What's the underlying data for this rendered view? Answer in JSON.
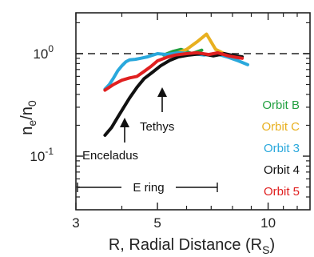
{
  "chart_data": {
    "type": "line",
    "x_scale": "log",
    "y_scale": "log",
    "xlim": [
      3,
      13
    ],
    "ylim": [
      0.03,
      2.5
    ],
    "xlabel": {
      "main": "R, Radial Distance (R",
      "sub": "S",
      "close": ")"
    },
    "ylabel": {
      "n": "n",
      "sub1": "e",
      "slash": "/n",
      "sub2": "0"
    },
    "x_ticks": [
      {
        "value": 3,
        "label": "3"
      },
      {
        "value": 5,
        "label": "5"
      },
      {
        "value": 10,
        "label": "10"
      }
    ],
    "y_ticks": [
      {
        "value": 0.1,
        "base": "10",
        "exp": "-1"
      },
      {
        "value": 1,
        "base": "10",
        "exp": "0"
      }
    ],
    "reference_line": {
      "y": 1,
      "style": "dashed"
    },
    "annotations": [
      {
        "id": "enceladus",
        "label": "Enceladus",
        "x": 3.95,
        "y": 0.19
      },
      {
        "id": "tethys",
        "label": "Tethys",
        "x": 4.88,
        "y": 0.5
      }
    ],
    "e_ring": {
      "label": "E ring",
      "x_start": 3.0,
      "x_end": 7.3
    },
    "series": [
      {
        "name": "Orbit B",
        "color": "#22a040",
        "points": [
          [
            5.2,
            0.97
          ],
          [
            5.5,
            1.05
          ],
          [
            5.8,
            1.1
          ],
          [
            6.2,
            1.0
          ],
          [
            6.6,
            1.08
          ]
        ]
      },
      {
        "name": "Orbit C",
        "color": "#e8b020",
        "points": [
          [
            5.6,
            1.0
          ],
          [
            6.0,
            1.1
          ],
          [
            6.4,
            1.3
          ],
          [
            6.8,
            1.55
          ],
          [
            7.0,
            1.3
          ],
          [
            7.2,
            1.1
          ],
          [
            7.6,
            1.0
          ]
        ]
      },
      {
        "name": "Orbit 3",
        "color": "#29a8dc",
        "points": [
          [
            3.6,
            0.45
          ],
          [
            3.7,
            0.5
          ],
          [
            3.8,
            0.58
          ],
          [
            3.9,
            0.68
          ],
          [
            4.0,
            0.76
          ],
          [
            4.1,
            0.83
          ],
          [
            4.2,
            0.87
          ],
          [
            4.35,
            0.88
          ],
          [
            4.5,
            0.9
          ],
          [
            4.7,
            0.93
          ],
          [
            5.0,
            1.0
          ],
          [
            5.3,
            0.98
          ],
          [
            5.7,
            1.02
          ],
          [
            6.2,
            1.0
          ],
          [
            6.7,
            0.97
          ],
          [
            7.2,
            1.0
          ],
          [
            7.8,
            0.92
          ],
          [
            8.3,
            0.85
          ],
          [
            8.8,
            0.78
          ]
        ]
      },
      {
        "name": "Orbit 4",
        "color": "#111111",
        "points": [
          [
            3.6,
            0.16
          ],
          [
            3.75,
            0.19
          ],
          [
            3.9,
            0.24
          ],
          [
            4.05,
            0.3
          ],
          [
            4.2,
            0.37
          ],
          [
            4.4,
            0.47
          ],
          [
            4.6,
            0.57
          ],
          [
            4.85,
            0.66
          ],
          [
            5.1,
            0.76
          ],
          [
            5.4,
            0.86
          ],
          [
            5.7,
            0.93
          ],
          [
            6.1,
            0.97
          ],
          [
            6.6,
            1.0
          ],
          [
            7.1,
            0.95
          ],
          [
            7.6,
            1.0
          ],
          [
            8.0,
            0.96
          ],
          [
            8.5,
            0.93
          ]
        ]
      },
      {
        "name": "Orbit 5",
        "color": "#e02020",
        "points": [
          [
            3.6,
            0.44
          ],
          [
            3.8,
            0.5
          ],
          [
            4.0,
            0.55
          ],
          [
            4.2,
            0.58
          ],
          [
            4.4,
            0.6
          ],
          [
            4.6,
            0.67
          ],
          [
            4.8,
            0.75
          ],
          [
            5.0,
            0.85
          ],
          [
            5.3,
            0.92
          ],
          [
            5.6,
            0.97
          ],
          [
            6.0,
            1.0
          ],
          [
            6.4,
            1.02
          ],
          [
            6.9,
            0.98
          ],
          [
            7.3,
            1.02
          ],
          [
            7.8,
            0.95
          ],
          [
            8.2,
            0.92
          ],
          [
            8.5,
            0.9
          ]
        ]
      }
    ]
  }
}
